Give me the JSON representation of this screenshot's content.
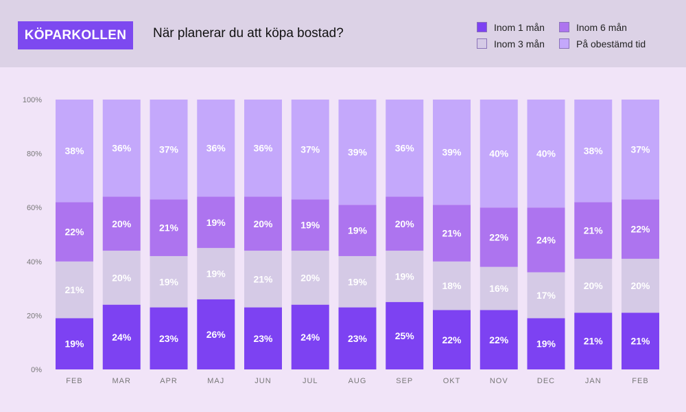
{
  "brand": "KÖPARKOLLEN",
  "question": "När planerar du att köpa bostad?",
  "legend": [
    {
      "label": "Inom 1 mån",
      "color": "#7d42f2"
    },
    {
      "label": "Inom 6 mån",
      "color": "#ad74ef"
    },
    {
      "label": "Inom 3 mån",
      "color": "#d5cae6"
    },
    {
      "label": "På obestämd tid",
      "color": "#c4a8fb"
    }
  ],
  "chart_data": {
    "type": "bar",
    "stacked": true,
    "categories": [
      "FEB",
      "MAR",
      "APR",
      "MAJ",
      "JUN",
      "JUL",
      "AUG",
      "SEP",
      "OKT",
      "NOV",
      "DEC",
      "JAN",
      "FEB"
    ],
    "series": [
      {
        "name": "Inom 1 mån",
        "color": "#7d42f2",
        "label_color": "#ffffff",
        "values": [
          19,
          24,
          23,
          26,
          23,
          24,
          23,
          25,
          22,
          22,
          19,
          21,
          21
        ]
      },
      {
        "name": "Inom 3 mån",
        "color": "#d5cae6",
        "label_color": "#ffffff",
        "values": [
          21,
          20,
          19,
          19,
          21,
          20,
          19,
          19,
          18,
          16,
          17,
          20,
          20
        ]
      },
      {
        "name": "Inom 6 mån",
        "color": "#ad74ef",
        "label_color": "#ffffff",
        "values": [
          22,
          20,
          21,
          19,
          20,
          19,
          19,
          20,
          21,
          22,
          24,
          21,
          22
        ]
      },
      {
        "name": "På obestämd tid",
        "color": "#c4a8fb",
        "label_color": "#ffffff",
        "values": [
          38,
          36,
          37,
          36,
          36,
          37,
          39,
          36,
          39,
          40,
          40,
          38,
          37
        ]
      }
    ],
    "value_suffix": "%",
    "ylim": [
      0,
      100
    ],
    "yticks": [
      "0%",
      "20%",
      "40%",
      "60%",
      "80%",
      "100%"
    ],
    "ytick_values": [
      0,
      20,
      40,
      60,
      80,
      100
    ],
    "grid": false,
    "legend_position": "top-right"
  }
}
